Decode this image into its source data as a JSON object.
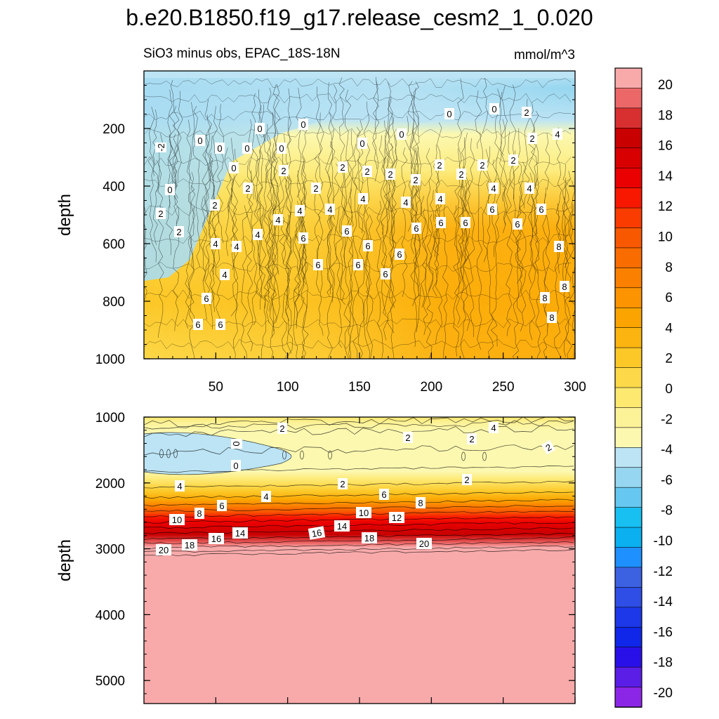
{
  "title": "b.e20.B1850.f19_g17.release_cesm2_1_0.020",
  "chart_data": {
    "type": "heatmap",
    "subtitle_left": "SiO3 minus obs, EPAC_18S-18N",
    "subtitle_right": "mmol/m^3",
    "colorbar": {
      "levels": [
        -20,
        -18,
        -16,
        -14,
        -12,
        -10,
        -8,
        -6,
        -4,
        -2,
        0,
        2,
        4,
        6,
        8,
        10,
        12,
        14,
        16,
        18,
        20
      ],
      "colors": [
        "#8c26e6",
        "#5a1ee6",
        "#2a10e8",
        "#1026e8",
        "#1c38e8",
        "#2e4ee6",
        "#3c62e2",
        "#1e90ff",
        "#0ab0f0",
        "#18c0f2",
        "#66c8f0",
        "#96d6f0",
        "#bce4f4",
        "#fcf8b0",
        "#fcf298",
        "#fde870",
        "#fdd848",
        "#fcc828",
        "#fbb410",
        "#fba400",
        "#fb9400",
        "#fb8000",
        "#f96c00",
        "#f85800",
        "#fa3c00",
        "#f81800",
        "#ea0000",
        "#d80000",
        "#c80000",
        "#d83030",
        "#ec6868",
        "#f8aaaa"
      ],
      "tick_labels": [
        "20",
        "18",
        "16",
        "14",
        "12",
        "10",
        "8",
        "6",
        "4",
        "2",
        "0",
        "-2",
        "-4",
        "-6",
        "-8",
        "-10",
        "-12",
        "-14",
        "-16",
        "-18",
        "-20"
      ]
    },
    "panels": [
      {
        "name": "upper",
        "xlabel": "",
        "ylabel": "depth",
        "xlim": [
          0,
          300
        ],
        "ylim": [
          1000,
          0
        ],
        "x_ticks": [
          "50",
          "100",
          "150",
          "200",
          "250",
          "300"
        ],
        "y_ticks": [
          "200",
          "400",
          "600",
          "800",
          "1000"
        ],
        "contour_labels": [
          "-2",
          "0",
          "0",
          "0",
          "0",
          "0",
          "0",
          "0",
          "0",
          "0",
          "0",
          "0",
          "0",
          "2",
          "2",
          "2",
          "2",
          "2",
          "2",
          "2",
          "2",
          "2",
          "2",
          "2",
          "2",
          "2",
          "2",
          "2",
          "2",
          "4",
          "4",
          "4",
          "4",
          "4",
          "4",
          "4",
          "4",
          "4",
          "4",
          "4",
          "4",
          "4",
          "6",
          "6",
          "6",
          "6",
          "6",
          "6",
          "6",
          "6",
          "6",
          "6",
          "6",
          "6",
          "6",
          "6",
          "6",
          "6",
          "8",
          "8",
          "8",
          "8"
        ]
      },
      {
        "name": "lower",
        "xlabel": "",
        "ylabel": "depth",
        "xlim": [
          0,
          300
        ],
        "ylim": [
          5350,
          1000
        ],
        "x_ticks": [],
        "y_ticks": [
          "1000",
          "2000",
          "3000",
          "4000",
          "5000"
        ],
        "contour_labels": [
          "2",
          "4",
          "2",
          "2",
          "0",
          "0",
          "2",
          "2",
          "2",
          "4",
          "4",
          "6",
          "6",
          "8",
          "8",
          "10",
          "10",
          "12",
          "14",
          "14",
          "16",
          "16",
          "18",
          "18",
          "20",
          "20"
        ]
      }
    ]
  }
}
